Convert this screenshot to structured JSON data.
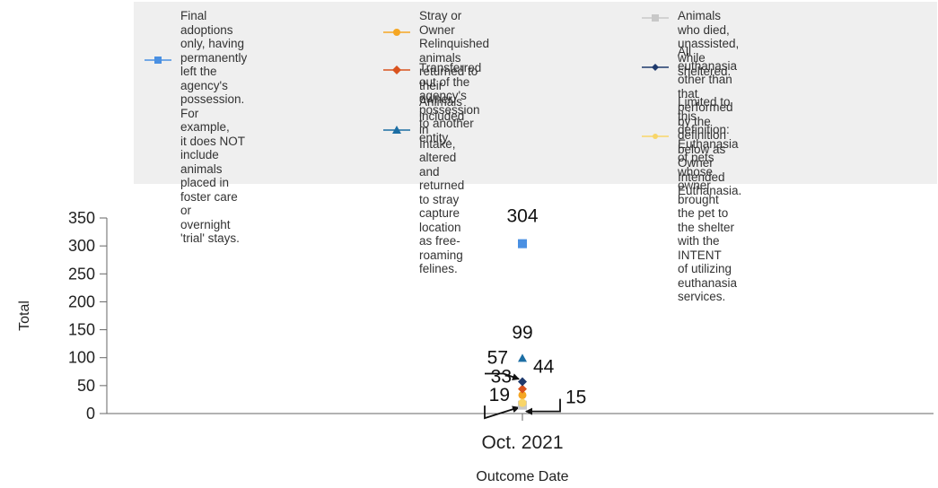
{
  "chart_data": {
    "type": "scatter",
    "categories": [
      "Oct. 2021"
    ],
    "ylim": [
      0,
      350
    ],
    "yticks": [
      0,
      50,
      100,
      150,
      200,
      250,
      300,
      350
    ],
    "ylabel": "Total",
    "xlabel": "Outcome Date",
    "grid": false,
    "legend_placement": "top",
    "series": [
      {
        "name": "Final adoptions only, having\npermanently left the agency's\npossession. For example,\nit does NOT include animals\nplaced in foster care or\novernight 'trial' stays.",
        "values": [
          304
        ],
        "label": "304",
        "color": "#4a90e2",
        "marker": "square"
      },
      {
        "name": "Stray or Owner Relinquished\nanimals returned to their\nowner.",
        "values": [
          33
        ],
        "label": "33",
        "color": "#f5a623",
        "marker": "circle"
      },
      {
        "name": "Transferred out of the agency's\npossession to another entity.",
        "values": [
          44
        ],
        "label": "44",
        "color": "#d9531e",
        "marker": "diamond"
      },
      {
        "name": "Animals included in Intake,\naltered and returned to stray\ncapture location as free-roaming\nfelines.",
        "values": [
          99
        ],
        "label": "99",
        "color": "#1c6ea4",
        "marker": "triangle"
      },
      {
        "name": "Animals who died, unassisted,\nwhile sheltered.",
        "values": [
          15
        ],
        "label": "15",
        "color": "#c8c8c8",
        "marker": "square"
      },
      {
        "name": "All euthanasia other than\nthat performed by the definition\nbelow as Owner Intended Euthanasia.",
        "values": [
          57
        ],
        "label": "57",
        "color": "#1f3a6d",
        "marker": "diamond"
      },
      {
        "name": "Limited to this definition:\nEuthanasia of pets whose\nowner brought the pet to\nthe shelter with the INTENT\nof utilizing euthanasia services.",
        "values": [
          19
        ],
        "label": "19",
        "color": "#f8d568",
        "marker": "circle"
      }
    ]
  }
}
